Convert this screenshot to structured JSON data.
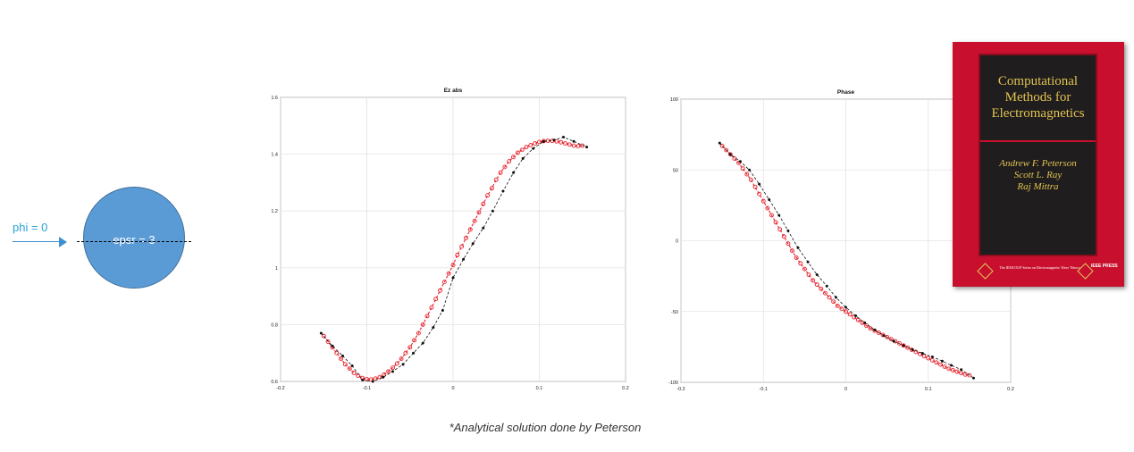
{
  "diagram": {
    "arrow_label": "phi = 0",
    "circle_label": "epsr = 3",
    "colors": {
      "circle": "#5b9bd5",
      "arrow": "#3d8fd1",
      "label": "#29a3d6"
    }
  },
  "caption": "*Analytical solution done by Peterson",
  "book": {
    "title_lines": [
      "Computational",
      "Methods for",
      "Electromagnetics"
    ],
    "authors": [
      "Andrew F. Peterson",
      "Scott L. Ray",
      "Raj Mittra"
    ],
    "series": "The IEEE/OUP Series on Electromagnetic Wave Theory",
    "publisher": "IEEE PRESS",
    "colors": {
      "cover": "#c8102e",
      "panel": "#1f1d1d",
      "gold": "#e2c253"
    }
  },
  "chart_data": [
    {
      "type": "line",
      "title": "Ez abs",
      "xlabel": "",
      "ylabel": "",
      "xlim": [
        -0.2,
        0.2
      ],
      "ylim": [
        0.6,
        1.6
      ],
      "xticks": [
        "-0.2",
        "-0.1",
        "0",
        "0.1",
        "0.2"
      ],
      "yticks": [
        "0.6",
        "0.8",
        "1",
        "1.2",
        "1.4",
        "1.6"
      ],
      "xtick_values": [
        -0.2,
        -0.1,
        0,
        0.1,
        0.2
      ],
      "ytick_values": [
        0.6,
        0.8,
        1.0,
        1.2,
        1.4,
        1.6
      ],
      "grid": true,
      "series": [
        {
          "color": "#e8202a",
          "style": "dashed",
          "marker": "open-circle",
          "x": [
            -0.15,
            -0.145,
            -0.14,
            -0.135,
            -0.13,
            -0.125,
            -0.12,
            -0.115,
            -0.11,
            -0.105,
            -0.1,
            -0.095,
            -0.09,
            -0.085,
            -0.08,
            -0.075,
            -0.07,
            -0.065,
            -0.06,
            -0.055,
            -0.05,
            -0.045,
            -0.04,
            -0.035,
            -0.03,
            -0.025,
            -0.02,
            -0.015,
            -0.01,
            -0.005,
            0,
            0.005,
            0.01,
            0.015,
            0.02,
            0.025,
            0.03,
            0.035,
            0.04,
            0.045,
            0.05,
            0.055,
            0.06,
            0.065,
            0.07,
            0.075,
            0.08,
            0.085,
            0.09,
            0.095,
            0.1,
            0.105,
            0.11,
            0.115,
            0.12,
            0.125,
            0.13,
            0.135,
            0.14,
            0.145,
            0.15
          ],
          "y": [
            0.76,
            0.74,
            0.72,
            0.7,
            0.68,
            0.66,
            0.645,
            0.63,
            0.62,
            0.612,
            0.608,
            0.607,
            0.61,
            0.615,
            0.624,
            0.635,
            0.648,
            0.663,
            0.68,
            0.7,
            0.72,
            0.745,
            0.77,
            0.8,
            0.83,
            0.86,
            0.89,
            0.92,
            0.95,
            0.98,
            1.01,
            1.045,
            1.075,
            1.105,
            1.135,
            1.165,
            1.195,
            1.225,
            1.255,
            1.28,
            1.31,
            1.335,
            1.355,
            1.375,
            1.39,
            1.405,
            1.415,
            1.425,
            1.432,
            1.438,
            1.443,
            1.446,
            1.447,
            1.447,
            1.445,
            1.442,
            1.438,
            1.434,
            1.43,
            1.428,
            1.43
          ]
        },
        {
          "color": "#111111",
          "style": "dashed",
          "marker": "dot",
          "x": [
            -0.153,
            -0.14,
            -0.128,
            -0.117,
            -0.105,
            -0.093,
            -0.081,
            -0.07,
            -0.058,
            -0.046,
            -0.035,
            -0.023,
            -0.012,
            0,
            0.012,
            0.023,
            0.035,
            0.046,
            0.058,
            0.07,
            0.081,
            0.093,
            0.105,
            0.117,
            0.128,
            0.14,
            0.155
          ],
          "y": [
            0.77,
            0.725,
            0.69,
            0.655,
            0.605,
            0.6,
            0.615,
            0.635,
            0.66,
            0.7,
            0.735,
            0.79,
            0.85,
            0.965,
            1.03,
            1.085,
            1.14,
            1.2,
            1.27,
            1.335,
            1.385,
            1.42,
            1.445,
            1.45,
            1.46,
            1.445,
            1.425
          ]
        }
      ]
    },
    {
      "type": "line",
      "title": "Phase",
      "xlabel": "",
      "ylabel": "",
      "xlim": [
        -0.2,
        0.2
      ],
      "ylim": [
        -100,
        100
      ],
      "xticks": [
        "-0.2",
        "-0.1",
        "0",
        "0.1",
        "0.2"
      ],
      "yticks": [
        "-100",
        "-50",
        "0",
        "50",
        "100"
      ],
      "xtick_values": [
        -0.2,
        -0.1,
        0,
        0.1,
        0.2
      ],
      "ytick_values": [
        -100,
        -50,
        0,
        50,
        100
      ],
      "grid": true,
      "series": [
        {
          "color": "#e8202a",
          "style": "dashed",
          "marker": "open-circle",
          "x": [
            -0.15,
            -0.145,
            -0.14,
            -0.135,
            -0.13,
            -0.125,
            -0.12,
            -0.115,
            -0.11,
            -0.105,
            -0.1,
            -0.095,
            -0.09,
            -0.085,
            -0.08,
            -0.075,
            -0.07,
            -0.065,
            -0.06,
            -0.055,
            -0.05,
            -0.045,
            -0.04,
            -0.035,
            -0.03,
            -0.025,
            -0.02,
            -0.015,
            -0.01,
            -0.005,
            0,
            0.005,
            0.01,
            0.015,
            0.02,
            0.025,
            0.03,
            0.035,
            0.04,
            0.045,
            0.05,
            0.055,
            0.06,
            0.065,
            0.07,
            0.075,
            0.08,
            0.085,
            0.09,
            0.095,
            0.1,
            0.105,
            0.11,
            0.115,
            0.12,
            0.125,
            0.13,
            0.135,
            0.14,
            0.145,
            0.15
          ],
          "y": [
            67,
            64,
            61,
            58,
            55,
            51,
            47,
            43,
            38,
            33,
            28,
            23,
            18,
            13,
            8,
            3,
            -2,
            -7,
            -12,
            -16,
            -20,
            -24,
            -28,
            -31,
            -34,
            -37,
            -40,
            -43,
            -46,
            -48,
            -50,
            -52,
            -54,
            -56,
            -58,
            -60,
            -62,
            -63.5,
            -65,
            -66.5,
            -68,
            -69.5,
            -71,
            -72.5,
            -74,
            -75.5,
            -77,
            -78.5,
            -80,
            -81.5,
            -83,
            -84.5,
            -86,
            -87.5,
            -89,
            -90.5,
            -91.5,
            -92.5,
            -93.5,
            -94.5,
            -95
          ]
        },
        {
          "color": "#111111",
          "style": "dashed",
          "marker": "dot",
          "x": [
            -0.153,
            -0.14,
            -0.128,
            -0.117,
            -0.105,
            -0.093,
            -0.081,
            -0.07,
            -0.058,
            -0.046,
            -0.035,
            -0.023,
            -0.012,
            0,
            0.012,
            0.023,
            0.035,
            0.046,
            0.058,
            0.07,
            0.081,
            0.093,
            0.105,
            0.117,
            0.128,
            0.14,
            0.155
          ],
          "y": [
            69,
            61,
            56,
            50,
            40,
            29,
            18,
            7,
            -5,
            -15,
            -24,
            -32,
            -40,
            -47,
            -53,
            -58,
            -63,
            -67,
            -71,
            -74,
            -77,
            -79.5,
            -82,
            -85,
            -88,
            -91,
            -97
          ]
        }
      ]
    }
  ]
}
